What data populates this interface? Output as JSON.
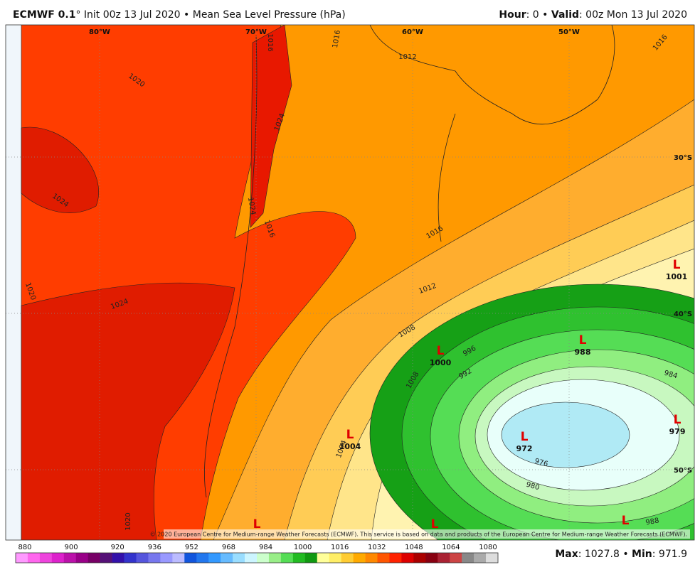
{
  "header": {
    "title": "ECMWF 0.1",
    "title_rest": "° Init 00z 13 Jul 2020 • Mean Sea Level Pressure (hPa)",
    "hour_label": "Hour",
    "hour_rest": ": 0 • ",
    "valid_label": "Valid",
    "valid_rest": ": 00z Mon 13 Jul 2020"
  },
  "map": {
    "lon_labels": [
      "80°W",
      "70°W",
      "60°W",
      "50°W"
    ],
    "lat_labels": [
      "30°S",
      "40°S",
      "50°S"
    ],
    "contour_labels": [
      1020,
      1024,
      1020,
      1024,
      1016,
      1024,
      1024,
      1016,
      1012,
      1016,
      1012,
      1008,
      996,
      992,
      984,
      976,
      980,
      988,
      1020,
      1004,
      1008,
      1016,
      1016
    ],
    "lows": [
      {
        "label": "L",
        "value": 1001
      },
      {
        "label": "L",
        "value": 988
      },
      {
        "label": "L",
        "value": 1000
      },
      {
        "label": "L",
        "value": 1004
      },
      {
        "label": "L",
        "value": 972
      },
      {
        "label": "L",
        "value": 979
      },
      {
        "label": "L"
      },
      {
        "label": "L"
      },
      {
        "label": "L"
      }
    ],
    "copyright": "© 2020 European Centre for Medium-range Weather Forecasts (ECMWF). This service is based on data and products of the European Centre for Medium-range Weather Forecasts (ECMWF)."
  },
  "colorbar": {
    "ticks": [
      880,
      900,
      920,
      936,
      952,
      968,
      984,
      1000,
      1016,
      1032,
      1048,
      1064,
      1080
    ],
    "colors": [
      "#ff99ff",
      "#ff66ee",
      "#ee44dd",
      "#dd22cc",
      "#bb11aa",
      "#990088",
      "#770066",
      "#551177",
      "#3311aa",
      "#3333cc",
      "#5555dd",
      "#7777ee",
      "#9999ff",
      "#bbbbff",
      "#1155dd",
      "#2277ee",
      "#3399ff",
      "#66bbff",
      "#99ddff",
      "#ccf5ff",
      "#ccffcc",
      "#99ee88",
      "#55dd55",
      "#22bb22",
      "#119911",
      "#ffff99",
      "#ffee66",
      "#ffcc33",
      "#ffaa00",
      "#ff8800",
      "#ff5500",
      "#ff2200",
      "#dd0000",
      "#aa0000",
      "#880011",
      "#aa2233",
      "#cc4444",
      "#888888",
      "#aaaaaa",
      "#dddddd"
    ]
  },
  "footer": {
    "max_label": "Max",
    "max_rest": ": 1027.8 • ",
    "min_label": "Min",
    "min_rest": ": 971.9"
  }
}
